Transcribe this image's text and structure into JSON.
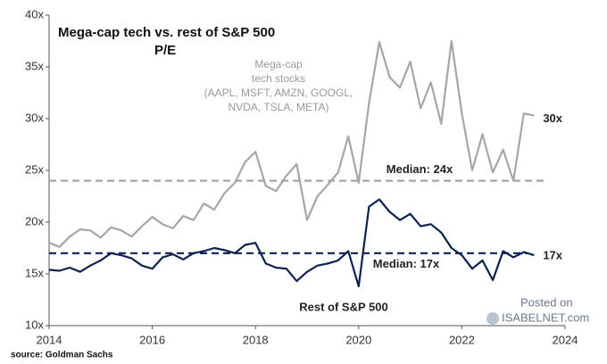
{
  "chart_data": {
    "type": "line",
    "title": "Mega-cap tech vs. rest of S&P 500",
    "subtitle": "P/E",
    "source": "source: Goldman Sachs",
    "watermark": [
      "Posted on",
      "ISABELNET.com"
    ],
    "x": [
      2014.0,
      2014.2,
      2014.4,
      2014.6,
      2014.8,
      2015.0,
      2015.2,
      2015.4,
      2015.6,
      2015.8,
      2016.0,
      2016.2,
      2016.4,
      2016.6,
      2016.8,
      2017.0,
      2017.2,
      2017.4,
      2017.6,
      2017.8,
      2018.0,
      2018.2,
      2018.4,
      2018.6,
      2018.8,
      2019.0,
      2019.2,
      2019.4,
      2019.6,
      2019.8,
      2020.0,
      2020.2,
      2020.4,
      2020.6,
      2020.8,
      2021.0,
      2021.2,
      2021.4,
      2021.6,
      2021.8,
      2022.0,
      2022.2,
      2022.4,
      2022.6,
      2022.8,
      2023.0,
      2023.2,
      2023.4
    ],
    "series": [
      {
        "name": [
          "Mega-cap",
          "tech stocks",
          "(AAPL, MSFT, AMZN, GOOGL,",
          "NVDA, TSLA, META)"
        ],
        "color": "#a6a6a6",
        "end_label": "30x",
        "values": [
          18.0,
          17.6,
          18.6,
          19.3,
          19.2,
          18.5,
          19.5,
          19.2,
          18.6,
          19.6,
          20.5,
          19.8,
          19.4,
          20.6,
          20.2,
          21.8,
          21.2,
          22.8,
          23.8,
          25.8,
          26.8,
          23.5,
          23.0,
          24.5,
          25.6,
          20.2,
          22.5,
          23.6,
          24.8,
          28.3,
          23.8,
          31.5,
          37.4,
          34.0,
          33.0,
          35.5,
          31.0,
          33.5,
          29.5,
          37.5,
          30.5,
          25.0,
          28.5,
          24.8,
          27.0,
          24.0,
          30.5,
          30.3
        ]
      },
      {
        "name": "Rest of S&P 500",
        "color": "#0b2250",
        "end_label": "17x",
        "values": [
          15.4,
          15.3,
          15.6,
          15.2,
          15.8,
          16.3,
          17.0,
          16.8,
          16.5,
          15.8,
          15.5,
          16.6,
          16.9,
          16.4,
          17.0,
          17.2,
          17.5,
          17.3,
          17.0,
          17.8,
          18.0,
          16.0,
          15.6,
          15.5,
          14.3,
          15.2,
          15.8,
          16.0,
          16.3,
          17.2,
          13.8,
          21.5,
          22.2,
          21.0,
          20.2,
          20.8,
          19.6,
          19.8,
          19.0,
          17.5,
          16.8,
          15.5,
          16.3,
          14.4,
          17.2,
          16.6,
          17.1,
          16.8
        ]
      }
    ],
    "reference_lines": [
      {
        "value": 24,
        "label": "Median: 24x",
        "color": "#a6a6a6"
      },
      {
        "value": 17,
        "label": "Median: 17x",
        "color": "#0b2250"
      }
    ],
    "xlim": [
      2014,
      2024
    ],
    "xticks": [
      2014,
      2016,
      2018,
      2020,
      2022,
      2024
    ],
    "ylim": [
      10,
      40
    ],
    "yticks": [
      {
        "value": 10,
        "label": "10x"
      },
      {
        "value": 15,
        "label": "15x"
      },
      {
        "value": 20,
        "label": "20x"
      },
      {
        "value": 25,
        "label": "25x"
      },
      {
        "value": 30,
        "label": "30x"
      },
      {
        "value": 35,
        "label": "35x"
      },
      {
        "value": 40,
        "label": "40x"
      }
    ],
    "grid": false
  }
}
